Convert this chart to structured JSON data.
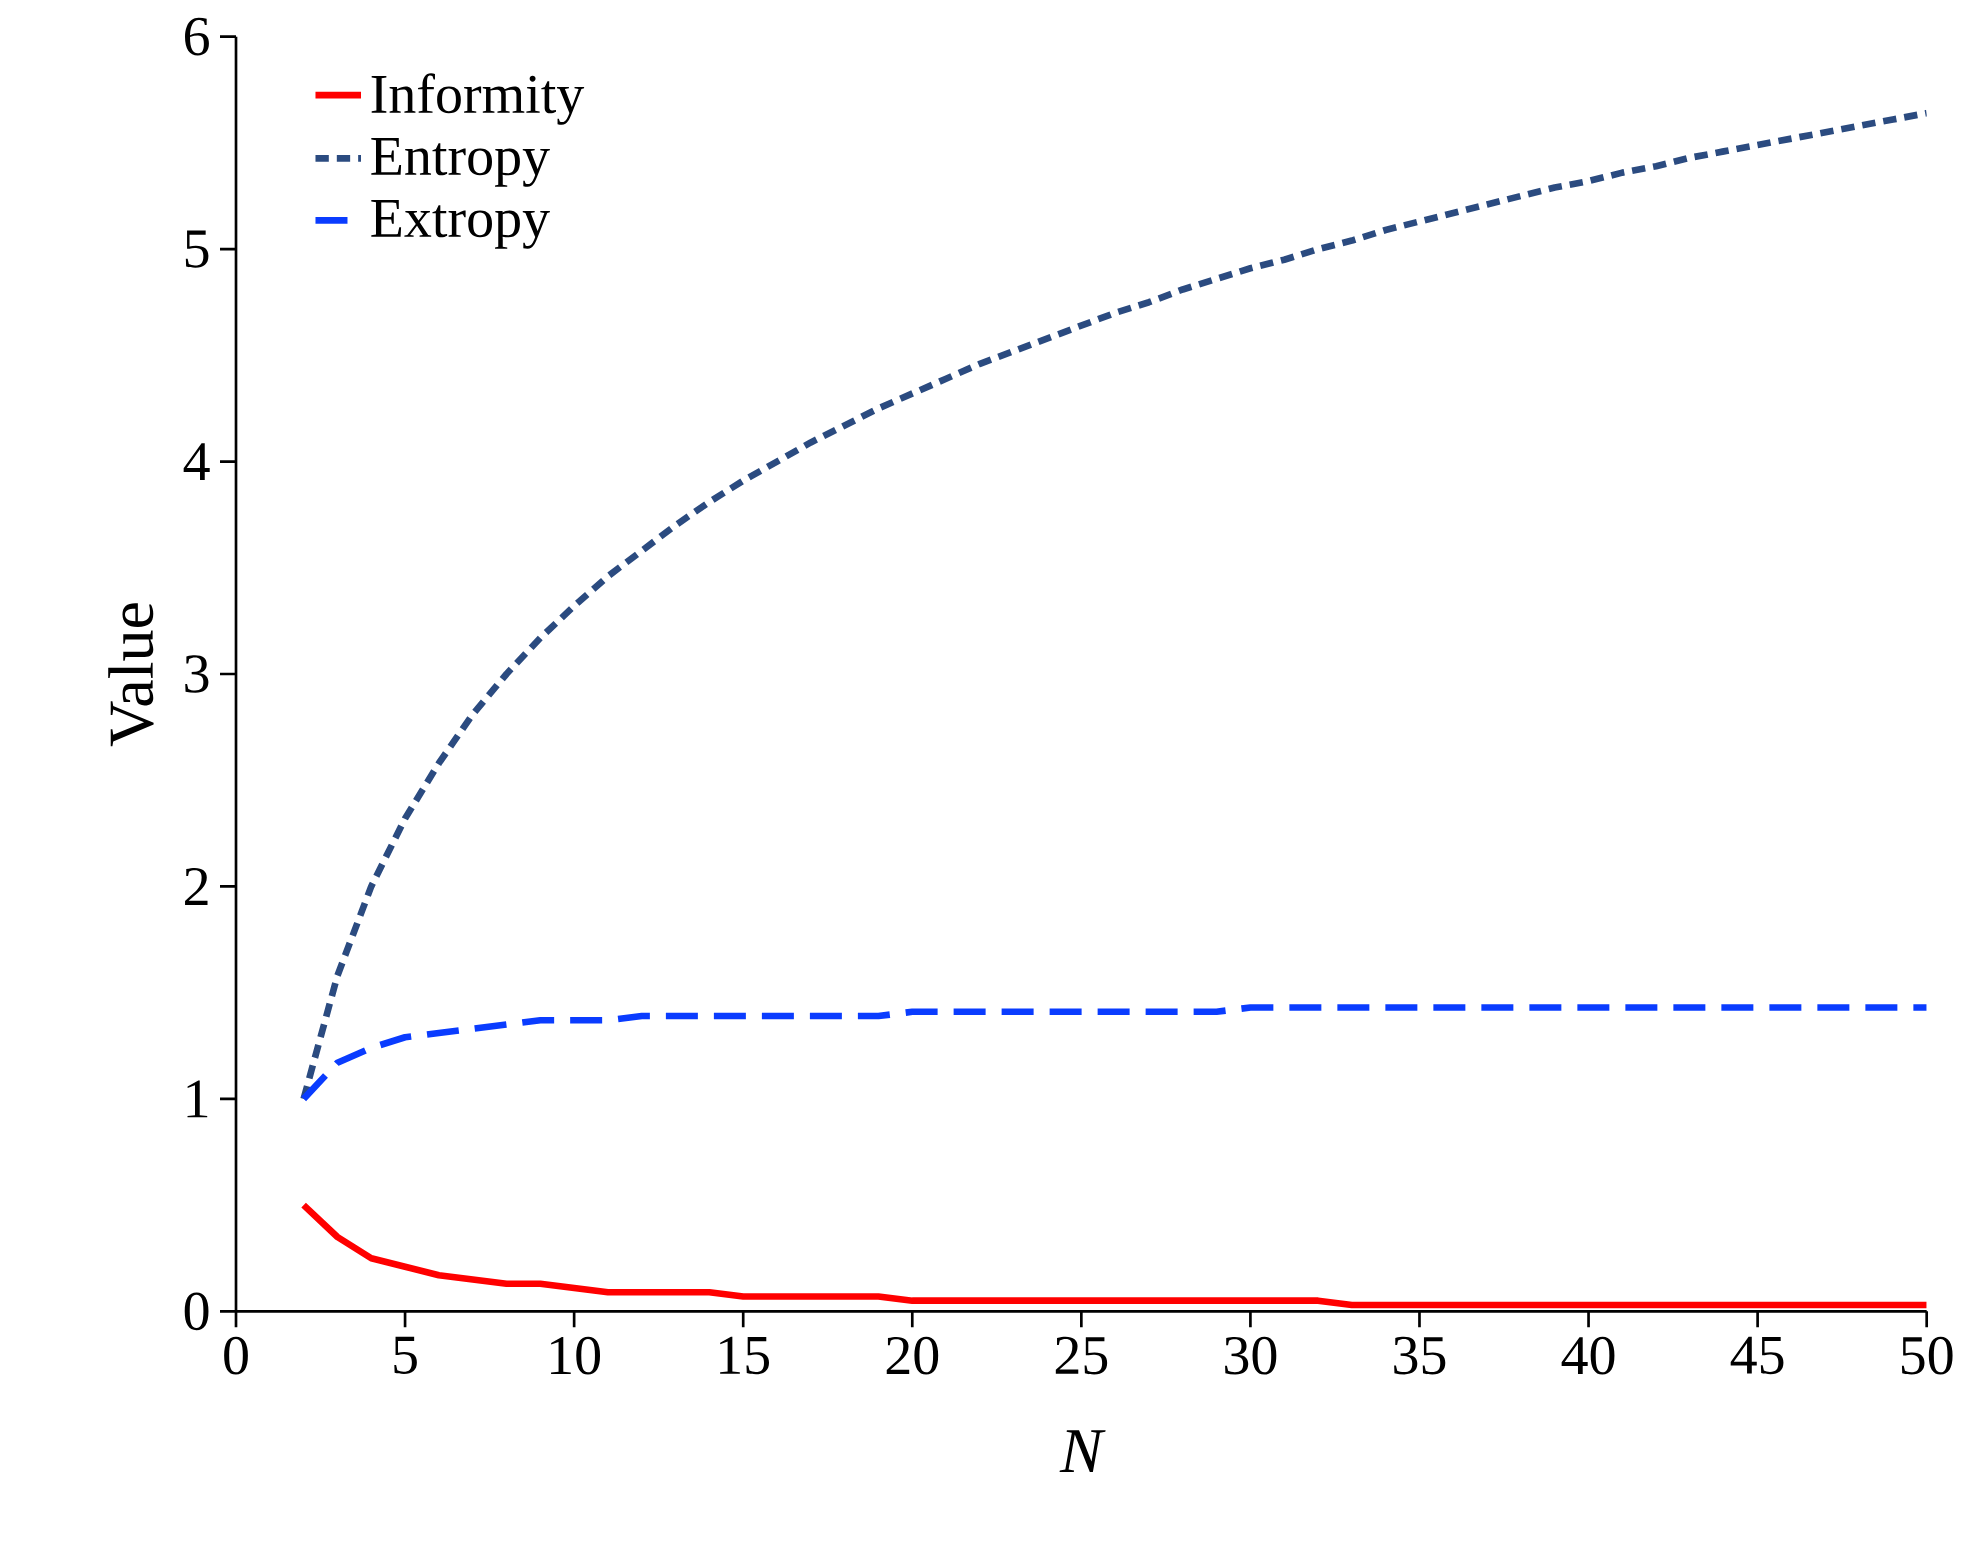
{
  "chart_data": {
    "type": "line",
    "xlabel": "N",
    "ylabel": "Value",
    "x": [
      2,
      3,
      4,
      5,
      6,
      7,
      8,
      9,
      10,
      11,
      12,
      13,
      14,
      15,
      16,
      17,
      18,
      19,
      20,
      21,
      22,
      23,
      24,
      25,
      26,
      27,
      28,
      29,
      30,
      31,
      32,
      33,
      34,
      35,
      36,
      37,
      38,
      39,
      40,
      41,
      42,
      43,
      44,
      45,
      46,
      47,
      48,
      49,
      50
    ],
    "series": [
      {
        "name": "Informity",
        "color": "#ff0000",
        "line_style": "solid",
        "values": [
          0.5,
          0.35,
          0.25,
          0.21,
          0.17,
          0.15,
          0.13,
          0.13,
          0.11,
          0.09,
          0.09,
          0.09,
          0.09,
          0.07,
          0.07,
          0.07,
          0.07,
          0.07,
          0.05,
          0.05,
          0.05,
          0.05,
          0.05,
          0.05,
          0.05,
          0.05,
          0.05,
          0.05,
          0.05,
          0.05,
          0.05,
          0.03,
          0.03,
          0.03,
          0.03,
          0.03,
          0.03,
          0.03,
          0.03,
          0.03,
          0.03,
          0.03,
          0.03,
          0.03,
          0.03,
          0.03,
          0.03,
          0.03,
          0.03
        ]
      },
      {
        "name": "Entropy",
        "color": "#2b4b80",
        "line_style": "dotted",
        "values": [
          1,
          1.58,
          2,
          2.32,
          2.58,
          2.81,
          3,
          3.17,
          3.32,
          3.46,
          3.58,
          3.7,
          3.81,
          3.91,
          4,
          4.09,
          4.17,
          4.25,
          4.32,
          4.39,
          4.46,
          4.52,
          4.58,
          4.64,
          4.7,
          4.75,
          4.81,
          4.86,
          4.91,
          4.95,
          5,
          5.04,
          5.09,
          5.13,
          5.17,
          5.21,
          5.25,
          5.29,
          5.32,
          5.36,
          5.39,
          5.43,
          5.46,
          5.49,
          5.52,
          5.55,
          5.58,
          5.61,
          5.64
        ]
      },
      {
        "name": "Extropy",
        "color": "#0a3cff",
        "line_style": "dashed",
        "values": [
          1,
          1.17,
          1.24,
          1.29,
          1.31,
          1.33,
          1.35,
          1.37,
          1.37,
          1.37,
          1.39,
          1.39,
          1.39,
          1.39,
          1.39,
          1.39,
          1.39,
          1.39,
          1.41,
          1.41,
          1.41,
          1.41,
          1.41,
          1.41,
          1.41,
          1.41,
          1.41,
          1.41,
          1.43,
          1.43,
          1.43,
          1.43,
          1.43,
          1.43,
          1.43,
          1.43,
          1.43,
          1.43,
          1.43,
          1.43,
          1.43,
          1.43,
          1.43,
          1.43,
          1.43,
          1.43,
          1.43,
          1.43,
          1.43
        ]
      }
    ],
    "xlim": [
      0,
      50
    ],
    "xticks": [
      0,
      5,
      10,
      15,
      20,
      25,
      30,
      35,
      40,
      45,
      50
    ],
    "ylim": [
      0,
      6
    ],
    "yticks": [
      0,
      1,
      2,
      3,
      4,
      5,
      6
    ],
    "grid": false,
    "legend": "top left",
    "marker": "none"
  }
}
